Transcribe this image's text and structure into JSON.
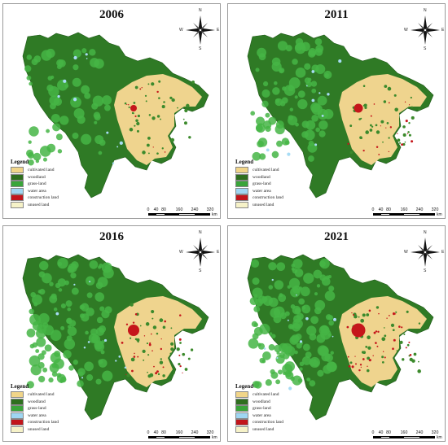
{
  "panels": [
    {
      "year": "2006"
    },
    {
      "year": "2011"
    },
    {
      "year": "2016"
    },
    {
      "year": "2021"
    }
  ],
  "compass": {
    "n": "N",
    "s": "S",
    "e": "E",
    "w": "W"
  },
  "legend": {
    "title": "Legend",
    "items": [
      {
        "label": "cultivated land",
        "color": "#f1d589"
      },
      {
        "label": "woodland",
        "color": "#2f6f1f"
      },
      {
        "label": "grass-land",
        "color": "#3aa53a"
      },
      {
        "label": "water area",
        "color": "#9fd6f2"
      },
      {
        "label": "construction land",
        "color": "#c2151b"
      },
      {
        "label": "unused land",
        "color": "#f6f2c8"
      }
    ]
  },
  "scale": {
    "ticks": [
      "0",
      "40",
      "80",
      "160",
      "240",
      "320"
    ],
    "unit": "km"
  }
}
